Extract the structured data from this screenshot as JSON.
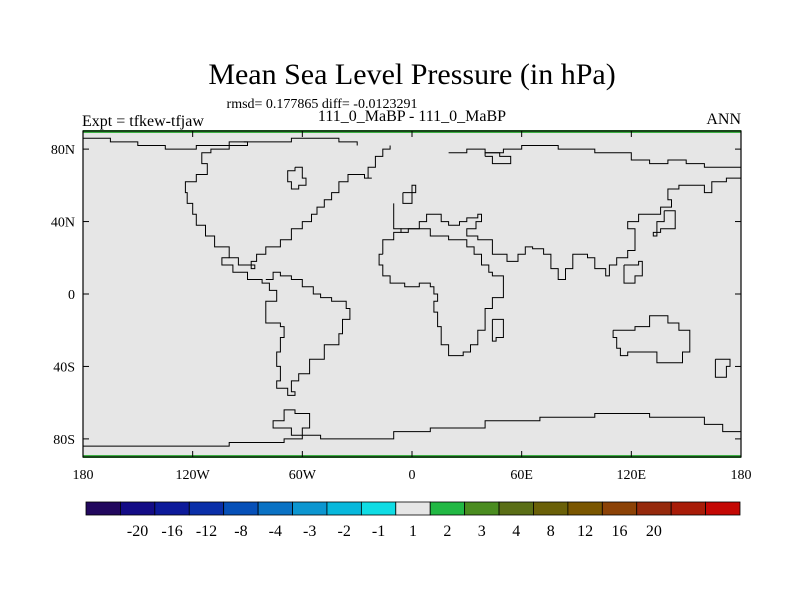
{
  "chart_data": {
    "type": "heatmap",
    "title": "Mean Sea Level Pressure (in hPa)",
    "stats_text": "rmsd= 0.177865 diff= -0.0123291",
    "subtitle": "111_0_MaBP - 111_0_MaBP",
    "left_label": "Expt = tfkew-tfjaw",
    "right_label": "ANN",
    "x_ticks": [
      {
        "value": -180,
        "label": "180"
      },
      {
        "value": -120,
        "label": "120W"
      },
      {
        "value": -60,
        "label": "60W"
      },
      {
        "value": 0,
        "label": "0"
      },
      {
        "value": 60,
        "label": "60E"
      },
      {
        "value": 120,
        "label": "120E"
      },
      {
        "value": 180,
        "label": "180"
      }
    ],
    "y_ticks": [
      {
        "value": 80,
        "label": "80N"
      },
      {
        "value": 40,
        "label": "40N"
      },
      {
        "value": 0,
        "label": "0"
      },
      {
        "value": -40,
        "label": "40S"
      },
      {
        "value": -80,
        "label": "80S"
      }
    ],
    "xlim": [
      -180,
      180
    ],
    "ylim": [
      -90,
      90
    ],
    "field_value_range": [
      -1,
      1
    ],
    "field_color": "#e6e6e6",
    "colorbar": {
      "colors": [
        "#22085e",
        "#140c86",
        "#0d1a9a",
        "#0a2fa8",
        "#0650b8",
        "#0a72c4",
        "#0c96d0",
        "#08b8dc",
        "#10dce4",
        "#e6e6e6",
        "#22b844",
        "#4a8c20",
        "#5a6e16",
        "#6a6008",
        "#7a5600",
        "#8c4206",
        "#962a0c",
        "#a81c08",
        "#c40804"
      ],
      "labels": [
        "-20",
        "-16",
        "-12",
        "-8",
        "-4",
        "-3",
        "-2",
        "-1",
        "1",
        "2",
        "3",
        "4",
        "8",
        "12",
        "16",
        "20"
      ]
    },
    "coastlines": [
      [
        [
          -180,
          86
        ],
        [
          -170,
          86
        ],
        [
          -165,
          84
        ],
        [
          -155,
          84
        ],
        [
          -150,
          82
        ],
        [
          -140,
          82
        ],
        [
          -135,
          80
        ],
        [
          -125,
          80
        ],
        [
          -118,
          82
        ],
        [
          -108,
          82
        ],
        [
          -100,
          84
        ],
        [
          -92,
          84
        ],
        [
          -90,
          82
        ],
        [
          -100,
          80
        ],
        [
          -110,
          78
        ],
        [
          -115,
          72
        ],
        [
          -112,
          66
        ],
        [
          -118,
          62
        ],
        [
          -124,
          56
        ],
        [
          -123,
          50
        ],
        [
          -120,
          44
        ],
        [
          -118,
          38
        ],
        [
          -113,
          32
        ],
        [
          -108,
          26
        ],
        [
          -100,
          20
        ],
        [
          -95,
          16
        ],
        [
          -86,
          14
        ],
        [
          -88,
          18
        ],
        [
          -85,
          22
        ],
        [
          -80,
          26
        ],
        [
          -72,
          30
        ],
        [
          -66,
          36
        ],
        [
          -60,
          40
        ],
        [
          -55,
          44
        ],
        [
          -52,
          48
        ],
        [
          -48,
          52
        ],
        [
          -44,
          56
        ],
        [
          -40,
          62
        ],
        [
          -35,
          66
        ],
        [
          -30,
          66
        ],
        [
          -26,
          64
        ],
        [
          -22,
          64
        ],
        [
          -24,
          70
        ],
        [
          -20,
          76
        ],
        [
          -16,
          80
        ],
        [
          -12,
          82
        ]
      ],
      [
        [
          -92,
          84
        ],
        [
          -80,
          84
        ],
        [
          -66,
          86
        ],
        [
          -50,
          86
        ],
        [
          -40,
          84
        ],
        [
          -30,
          82
        ]
      ],
      [
        [
          -64,
          70
        ],
        [
          -60,
          64
        ],
        [
          -58,
          60
        ],
        [
          -62,
          58
        ],
        [
          -66,
          62
        ],
        [
          -68,
          68
        ],
        [
          -64,
          70
        ]
      ],
      [
        [
          -5,
          56
        ],
        [
          0,
          60
        ],
        [
          2,
          56
        ],
        [
          0,
          50
        ],
        [
          -5,
          56
        ]
      ],
      [
        [
          -10,
          50
        ],
        [
          -10,
          36
        ],
        [
          -6,
          34
        ],
        [
          -2,
          36
        ],
        [
          4,
          40
        ],
        [
          8,
          44
        ],
        [
          12,
          44
        ],
        [
          16,
          40
        ],
        [
          20,
          38
        ],
        [
          26,
          40
        ],
        [
          30,
          42
        ],
        [
          36,
          44
        ],
        [
          38,
          40
        ],
        [
          35,
          36
        ],
        [
          30,
          32
        ],
        [
          36,
          30
        ],
        [
          44,
          22
        ],
        [
          52,
          18
        ],
        [
          58,
          22
        ],
        [
          62,
          26
        ],
        [
          66,
          25
        ],
        [
          72,
          22
        ],
        [
          76,
          14
        ],
        [
          80,
          8
        ],
        [
          84,
          14
        ],
        [
          88,
          22
        ],
        [
          96,
          20
        ],
        [
          100,
          14
        ],
        [
          106,
          10
        ],
        [
          108,
          16
        ],
        [
          112,
          20
        ],
        [
          118,
          24
        ],
        [
          122,
          30
        ],
        [
          122,
          36
        ],
        [
          118,
          40
        ],
        [
          124,
          44
        ],
        [
          130,
          44
        ],
        [
          136,
          48
        ],
        [
          142,
          52
        ],
        [
          140,
          58
        ],
        [
          146,
          60
        ],
        [
          155,
          60
        ],
        [
          160,
          56
        ],
        [
          164,
          62
        ],
        [
          172,
          64
        ],
        [
          180,
          66
        ]
      ],
      [
        [
          20,
          78
        ],
        [
          30,
          80
        ],
        [
          40,
          78
        ],
        [
          50,
          80
        ],
        [
          60,
          82
        ],
        [
          70,
          82
        ],
        [
          80,
          80
        ],
        [
          90,
          80
        ],
        [
          100,
          78
        ],
        [
          110,
          78
        ],
        [
          120,
          74
        ],
        [
          130,
          72
        ],
        [
          140,
          74
        ],
        [
          150,
          72
        ],
        [
          160,
          70
        ],
        [
          170,
          70
        ],
        [
          180,
          68
        ]
      ],
      [
        [
          40,
          76
        ],
        [
          44,
          72
        ],
        [
          50,
          72
        ],
        [
          54,
          76
        ],
        [
          48,
          78
        ],
        [
          40,
          76
        ]
      ],
      [
        [
          138,
          46
        ],
        [
          144,
          42
        ],
        [
          144,
          36
        ],
        [
          136,
          34
        ],
        [
          132,
          32
        ],
        [
          134,
          40
        ],
        [
          138,
          46
        ]
      ],
      [
        [
          116,
          16
        ],
        [
          124,
          18
        ],
        [
          126,
          10
        ],
        [
          122,
          6
        ],
        [
          116,
          10
        ],
        [
          116,
          16
        ]
      ],
      [
        [
          -100,
          20
        ],
        [
          -104,
          16
        ],
        [
          -98,
          12
        ],
        [
          -90,
          8
        ],
        [
          -82,
          6
        ],
        [
          -78,
          2
        ],
        [
          -74,
          -4
        ],
        [
          -80,
          -8
        ],
        [
          -80,
          -16
        ],
        [
          -72,
          -18
        ],
        [
          -70,
          -24
        ],
        [
          -72,
          -32
        ],
        [
          -74,
          -40
        ],
        [
          -72,
          -48
        ],
        [
          -74,
          -52
        ],
        [
          -68,
          -56
        ],
        [
          -64,
          -54
        ],
        [
          -66,
          -48
        ],
        [
          -62,
          -44
        ],
        [
          -56,
          -36
        ],
        [
          -48,
          -28
        ],
        [
          -40,
          -22
        ],
        [
          -38,
          -14
        ],
        [
          -34,
          -8
        ],
        [
          -36,
          -4
        ],
        [
          -44,
          -2
        ],
        [
          -50,
          0
        ],
        [
          -54,
          4
        ],
        [
          -60,
          8
        ],
        [
          -66,
          10
        ],
        [
          -72,
          12
        ],
        [
          -76,
          8
        ],
        [
          -80,
          8
        ]
      ],
      [
        [
          -16,
          22
        ],
        [
          -18,
          16
        ],
        [
          -16,
          10
        ],
        [
          -12,
          6
        ],
        [
          -4,
          4
        ],
        [
          4,
          6
        ],
        [
          10,
          4
        ],
        [
          12,
          0
        ],
        [
          14,
          -4
        ],
        [
          12,
          -10
        ],
        [
          14,
          -18
        ],
        [
          16,
          -28
        ],
        [
          20,
          -34
        ],
        [
          28,
          -32
        ],
        [
          32,
          -28
        ],
        [
          36,
          -20
        ],
        [
          40,
          -14
        ],
        [
          40,
          -8
        ],
        [
          44,
          -2
        ],
        [
          50,
          10
        ],
        [
          44,
          12
        ],
        [
          42,
          16
        ],
        [
          38,
          22
        ],
        [
          34,
          26
        ],
        [
          30,
          30
        ],
        [
          20,
          32
        ],
        [
          12,
          32
        ],
        [
          10,
          36
        ],
        [
          2,
          36
        ],
        [
          -6,
          34
        ],
        [
          -10,
          30
        ],
        [
          -16,
          22
        ]
      ],
      [
        [
          44,
          -14
        ],
        [
          50,
          -14
        ],
        [
          50,
          -24
        ],
        [
          46,
          -26
        ],
        [
          44,
          -20
        ],
        [
          44,
          -14
        ]
      ],
      [
        [
          110,
          -20
        ],
        [
          116,
          -20
        ],
        [
          122,
          -18
        ],
        [
          130,
          -12
        ],
        [
          136,
          -12
        ],
        [
          140,
          -16
        ],
        [
          146,
          -20
        ],
        [
          152,
          -26
        ],
        [
          152,
          -32
        ],
        [
          148,
          -38
        ],
        [
          140,
          -38
        ],
        [
          134,
          -32
        ],
        [
          128,
          -32
        ],
        [
          118,
          -34
        ],
        [
          114,
          -30
        ],
        [
          112,
          -24
        ],
        [
          110,
          -20
        ]
      ],
      [
        [
          166,
          -36
        ],
        [
          174,
          -40
        ],
        [
          172,
          -46
        ],
        [
          166,
          -44
        ],
        [
          166,
          -36
        ]
      ],
      [
        [
          -180,
          -84
        ],
        [
          -140,
          -84
        ],
        [
          -100,
          -82
        ],
        [
          -70,
          -80
        ],
        [
          -60,
          -74
        ],
        [
          -56,
          -66
        ],
        [
          -64,
          -64
        ],
        [
          -70,
          -70
        ],
        [
          -76,
          -74
        ],
        [
          -66,
          -78
        ],
        [
          -50,
          -80
        ],
        [
          -30,
          -80
        ],
        [
          -10,
          -76
        ],
        [
          10,
          -74
        ],
        [
          40,
          -70
        ],
        [
          70,
          -68
        ],
        [
          100,
          -66
        ],
        [
          130,
          -68
        ],
        [
          160,
          -72
        ],
        [
          170,
          -76
        ],
        [
          180,
          -82
        ]
      ]
    ]
  }
}
